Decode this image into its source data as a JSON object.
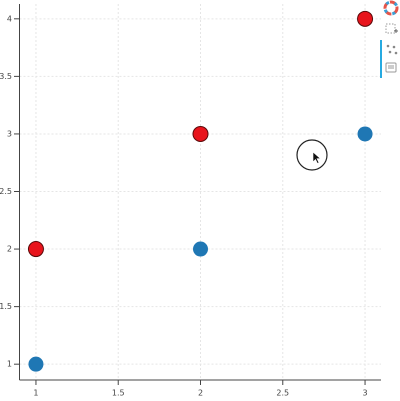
{
  "chart_data": {
    "type": "scatter",
    "x": [
      1,
      2,
      3
    ],
    "series": [
      {
        "color": "#1f77b4",
        "values": [
          1,
          2,
          3
        ]
      },
      {
        "color": "#e8141c",
        "values": [
          2,
          3,
          4
        ]
      }
    ],
    "xlim": [
      0.9,
      3.1
    ],
    "ylim": [
      0.88,
      4.12
    ],
    "xticks": [
      1,
      1.5,
      2,
      2.5,
      3
    ],
    "yticks": [
      1,
      1.5,
      2,
      2.5,
      3,
      3.5,
      4
    ],
    "grid": true
  }
}
